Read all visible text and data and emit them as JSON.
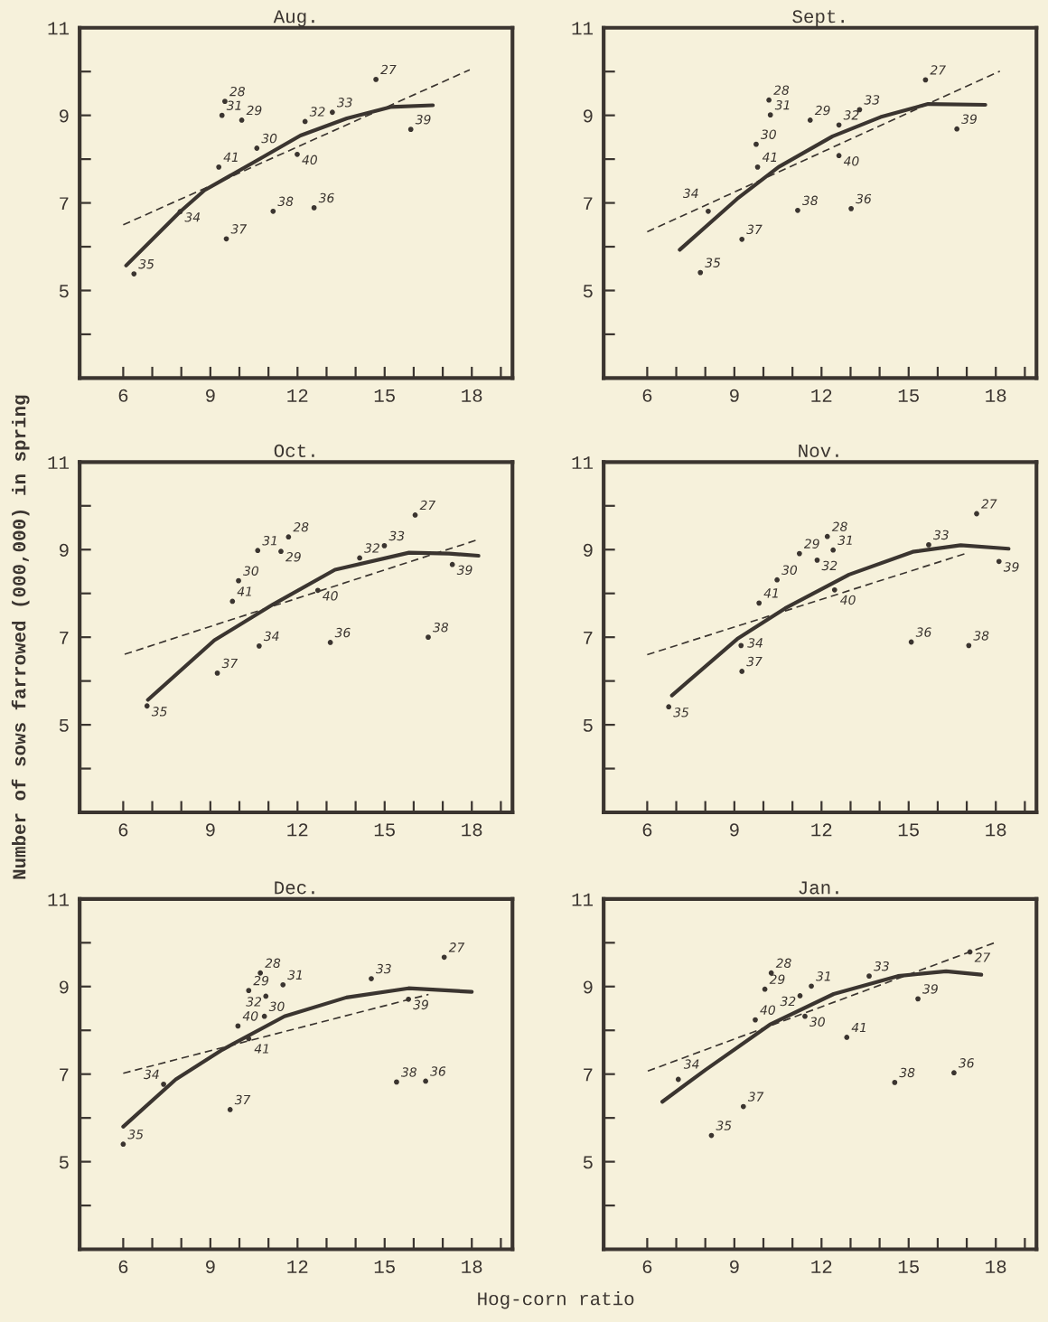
{
  "chart_data": [
    {
      "type": "scatter",
      "title": "Aug.",
      "xlim": [
        4.5,
        19.4
      ],
      "ylim": [
        3,
        11
      ],
      "xticks": [
        6,
        {
          "value": 7,
          "label": null
        },
        {
          "value": 8,
          "label": null
        },
        9,
        {
          "value": 10,
          "label": null
        },
        {
          "value": 11,
          "label": null
        },
        12,
        {
          "value": 13,
          "label": null
        },
        {
          "value": 14,
          "label": null
        },
        15,
        {
          "value": 16,
          "label": null
        },
        {
          "value": 17,
          "label": null
        },
        18,
        {
          "value": 19,
          "label": null
        }
      ],
      "yticks": [
        {
          "value": 4,
          "label": null
        },
        5,
        {
          "value": 6,
          "label": null
        },
        7,
        {
          "value": 8,
          "label": null
        },
        9,
        {
          "value": 10,
          "label": null
        },
        11
      ],
      "series": [
        {
          "marker": "circle",
          "color": "#3b3530",
          "x": [
            6.37,
            7.96,
            9.55,
            9.4,
            9.5,
            10.08,
            9.29,
            10.6,
            12.26,
            13.2,
            11.99,
            11.16,
            12.57,
            14.7,
            15.9
          ],
          "values": [
            5.38,
            6.8,
            6.18,
            9.0,
            9.32,
            8.89,
            7.82,
            8.25,
            8.86,
            9.07,
            8.11,
            6.81,
            6.89,
            9.82,
            8.68
          ]
        },
        {
          "type": "line",
          "marker": "none",
          "line_style": "solid",
          "color": "#3b3530",
          "x": [
            6.1,
            7.96,
            8.8,
            10.5,
            12.1,
            13.7,
            15.2,
            16.66
          ],
          "values": [
            5.57,
            6.8,
            7.29,
            7.93,
            8.54,
            8.93,
            9.19,
            9.23
          ]
        },
        {
          "type": "line",
          "marker": "none",
          "line_style": "dashed",
          "color": "#3b3530",
          "x": [
            6.0,
            17.93
          ],
          "values": [
            6.5,
            10.04
          ]
        }
      ],
      "annotations": [
        {
          "text": "35",
          "x": 6.37,
          "y": 5.38
        },
        {
          "text": "34",
          "x": 7.96,
          "y": 6.8
        },
        {
          "text": "37",
          "x": 9.55,
          "y": 6.18
        },
        {
          "text": "31",
          "x": 9.4,
          "y": 9.0
        },
        {
          "text": "28",
          "x": 9.5,
          "y": 9.32
        },
        {
          "text": "29",
          "x": 10.08,
          "y": 8.89
        },
        {
          "text": "41",
          "x": 9.29,
          "y": 7.82
        },
        {
          "text": "30",
          "x": 10.6,
          "y": 8.25
        },
        {
          "text": "32",
          "x": 12.26,
          "y": 8.86
        },
        {
          "text": "33",
          "x": 13.2,
          "y": 9.07
        },
        {
          "text": "40",
          "x": 11.99,
          "y": 8.11
        },
        {
          "text": "38",
          "x": 11.16,
          "y": 6.81
        },
        {
          "text": "36",
          "x": 12.57,
          "y": 6.89
        },
        {
          "text": "27",
          "x": 14.7,
          "y": 9.82
        },
        {
          "text": "39",
          "x": 15.9,
          "y": 8.68
        }
      ]
    },
    {
      "type": "scatter",
      "title": "Sept.",
      "xlim": [
        4.5,
        19.4
      ],
      "ylim": [
        3,
        11
      ],
      "xticks": [
        6,
        {
          "value": 7,
          "label": null
        },
        {
          "value": 8,
          "label": null
        },
        9,
        {
          "value": 10,
          "label": null
        },
        {
          "value": 11,
          "label": null
        },
        12,
        {
          "value": 13,
          "label": null
        },
        {
          "value": 14,
          "label": null
        },
        15,
        {
          "value": 16,
          "label": null
        },
        {
          "value": 17,
          "label": null
        },
        18,
        {
          "value": 19,
          "label": null
        }
      ],
      "yticks": [
        {
          "value": 4,
          "label": null
        },
        5,
        {
          "value": 6,
          "label": null
        },
        7,
        {
          "value": 8,
          "label": null
        },
        9,
        {
          "value": 10,
          "label": null
        },
        11
      ],
      "series": [
        {
          "marker": "circle",
          "color": "#3b3530",
          "x": [
            10.19,
            10.24,
            9.75,
            9.8,
            8.1,
            9.26,
            7.83,
            11.61,
            12.6,
            13.31,
            12.6,
            11.18,
            13.02,
            15.58,
            16.66
          ],
          "values": [
            9.35,
            9.01,
            8.34,
            7.82,
            6.81,
            6.17,
            5.41,
            8.89,
            8.78,
            9.13,
            8.08,
            6.83,
            6.87,
            9.81,
            8.69
          ]
        },
        {
          "type": "line",
          "marker": "none",
          "line_style": "solid",
          "color": "#3b3530",
          "x": [
            7.12,
            9.09,
            10.52,
            12.38,
            14.03,
            15.67,
            17.64
          ],
          "values": [
            5.93,
            7.09,
            7.82,
            8.52,
            8.96,
            9.26,
            9.24
          ]
        },
        {
          "type": "line",
          "marker": "none",
          "line_style": "dashed",
          "color": "#3b3530",
          "x": [
            6.0,
            18.14
          ],
          "values": [
            6.34,
            10.01
          ]
        }
      ],
      "annotations": [
        {
          "text": "28",
          "x": 10.19,
          "y": 9.35
        },
        {
          "text": "31",
          "x": 10.24,
          "y": 9.01
        },
        {
          "text": "30",
          "x": 9.75,
          "y": 8.34
        },
        {
          "text": "41",
          "x": 9.8,
          "y": 7.82
        },
        {
          "text": "34",
          "x": 8.1,
          "y": 6.81
        },
        {
          "text": "37",
          "x": 9.26,
          "y": 6.17
        },
        {
          "text": "35",
          "x": 7.83,
          "y": 5.41
        },
        {
          "text": "29",
          "x": 11.61,
          "y": 8.89
        },
        {
          "text": "32",
          "x": 12.6,
          "y": 8.78
        },
        {
          "text": "33",
          "x": 13.31,
          "y": 9.13
        },
        {
          "text": "40",
          "x": 12.6,
          "y": 8.08
        },
        {
          "text": "38",
          "x": 11.18,
          "y": 6.83
        },
        {
          "text": "36",
          "x": 13.02,
          "y": 6.87
        },
        {
          "text": "27",
          "x": 15.58,
          "y": 9.81
        },
        {
          "text": "39",
          "x": 16.66,
          "y": 8.69
        }
      ]
    },
    {
      "type": "scatter",
      "title": "Oct.",
      "ylabel": "Number of sows farrowed (000,000) in spring",
      "xlim": [
        4.5,
        19.4
      ],
      "ylim": [
        3,
        11
      ],
      "xticks": [
        6,
        {
          "value": 7,
          "label": null
        },
        {
          "value": 8,
          "label": null
        },
        9,
        {
          "value": 10,
          "label": null
        },
        {
          "value": 11,
          "label": null
        },
        12,
        {
          "value": 13,
          "label": null
        },
        {
          "value": 14,
          "label": null
        },
        15,
        {
          "value": 16,
          "label": null
        },
        {
          "value": 17,
          "label": null
        },
        18,
        {
          "value": 19,
          "label": null
        }
      ],
      "yticks": [
        {
          "value": 4,
          "label": null
        },
        5,
        {
          "value": 6,
          "label": null
        },
        7,
        {
          "value": 8,
          "label": null
        },
        9,
        {
          "value": 10,
          "label": null
        },
        11
      ],
      "series": [
        {
          "marker": "circle",
          "color": "#3b3530",
          "x": [
            6.82,
            9.24,
            10.68,
            9.76,
            9.97,
            10.63,
            11.69,
            11.43,
            14.14,
            14.99,
            16.05,
            17.33,
            12.7,
            13.13,
            16.5
          ],
          "values": [
            5.43,
            6.18,
            6.8,
            7.82,
            8.29,
            8.98,
            9.29,
            8.96,
            8.81,
            9.09,
            9.79,
            8.66,
            8.07,
            6.88,
            7.0
          ]
        },
        {
          "type": "line",
          "marker": "none",
          "line_style": "solid",
          "color": "#3b3530",
          "x": [
            6.85,
            9.14,
            11.16,
            13.29,
            15.84,
            17.22,
            18.23
          ],
          "values": [
            5.57,
            6.93,
            7.75,
            8.54,
            8.93,
            8.91,
            8.86
          ]
        },
        {
          "type": "line",
          "marker": "none",
          "line_style": "dashed",
          "color": "#3b3530",
          "x": [
            6.05,
            18.13
          ],
          "values": [
            6.61,
            9.21
          ]
        }
      ],
      "annotations": [
        {
          "text": "35",
          "x": 6.82,
          "y": 5.43
        },
        {
          "text": "37",
          "x": 9.24,
          "y": 6.18
        },
        {
          "text": "34",
          "x": 10.68,
          "y": 6.8
        },
        {
          "text": "41",
          "x": 9.76,
          "y": 7.82
        },
        {
          "text": "30",
          "x": 9.97,
          "y": 8.29
        },
        {
          "text": "31",
          "x": 10.63,
          "y": 8.98
        },
        {
          "text": "28",
          "x": 11.69,
          "y": 9.29
        },
        {
          "text": "29",
          "x": 11.43,
          "y": 8.96
        },
        {
          "text": "32",
          "x": 14.14,
          "y": 8.81
        },
        {
          "text": "33",
          "x": 14.99,
          "y": 9.09
        },
        {
          "text": "27",
          "x": 16.05,
          "y": 9.79
        },
        {
          "text": "39",
          "x": 17.33,
          "y": 8.66
        },
        {
          "text": "40",
          "x": 12.7,
          "y": 8.07
        },
        {
          "text": "36",
          "x": 13.13,
          "y": 6.88
        },
        {
          "text": "38",
          "x": 16.5,
          "y": 7.0
        }
      ]
    },
    {
      "type": "scatter",
      "title": "Nov.",
      "xlim": [
        4.5,
        19.4
      ],
      "ylim": [
        3,
        11
      ],
      "xticks": [
        6,
        {
          "value": 7,
          "label": null
        },
        {
          "value": 8,
          "label": null
        },
        9,
        {
          "value": 10,
          "label": null
        },
        {
          "value": 11,
          "label": null
        },
        12,
        {
          "value": 13,
          "label": null
        },
        {
          "value": 14,
          "label": null
        },
        15,
        {
          "value": 16,
          "label": null
        },
        {
          "value": 17,
          "label": null
        },
        18,
        {
          "value": 19,
          "label": null
        }
      ],
      "yticks": [
        {
          "value": 4,
          "label": null
        },
        5,
        {
          "value": 6,
          "label": null
        },
        7,
        {
          "value": 8,
          "label": null
        },
        9,
        {
          "value": 10,
          "label": null
        },
        11
      ],
      "series": [
        {
          "marker": "circle",
          "color": "#3b3530",
          "x": [
            6.74,
            9.26,
            9.23,
            9.85,
            10.47,
            11.24,
            12.2,
            12.4,
            11.85,
            12.45,
            15.69,
            17.34,
            18.11,
            15.09,
            17.07
          ],
          "values": [
            5.41,
            6.22,
            6.81,
            7.78,
            8.31,
            8.91,
            9.3,
            8.99,
            8.76,
            8.08,
            9.11,
            9.82,
            8.73,
            6.89,
            6.81
          ]
        },
        {
          "type": "line",
          "marker": "none",
          "line_style": "solid",
          "color": "#3b3530",
          "x": [
            6.85,
            9.1,
            10.75,
            12.95,
            15.14,
            16.79,
            18.44
          ],
          "values": [
            5.67,
            6.96,
            7.66,
            8.43,
            8.95,
            9.1,
            9.02
          ]
        },
        {
          "type": "line",
          "marker": "none",
          "line_style": "dashed",
          "color": "#3b3530",
          "x": [
            6.0,
            16.96
          ],
          "values": [
            6.6,
            8.91
          ]
        }
      ],
      "annotations": [
        {
          "text": "35",
          "x": 6.74,
          "y": 5.41
        },
        {
          "text": "37",
          "x": 9.26,
          "y": 6.22
        },
        {
          "text": "34",
          "x": 9.23,
          "y": 6.81
        },
        {
          "text": "41",
          "x": 9.85,
          "y": 7.78
        },
        {
          "text": "30",
          "x": 10.47,
          "y": 8.31
        },
        {
          "text": "29",
          "x": 11.24,
          "y": 8.91
        },
        {
          "text": "28",
          "x": 12.2,
          "y": 9.3
        },
        {
          "text": "31",
          "x": 12.4,
          "y": 8.99
        },
        {
          "text": "32",
          "x": 11.85,
          "y": 8.76
        },
        {
          "text": "40",
          "x": 12.45,
          "y": 8.08
        },
        {
          "text": "33",
          "x": 15.69,
          "y": 9.11
        },
        {
          "text": "27",
          "x": 17.34,
          "y": 9.82
        },
        {
          "text": "39",
          "x": 18.11,
          "y": 8.73
        },
        {
          "text": "36",
          "x": 15.09,
          "y": 6.89
        },
        {
          "text": "38",
          "x": 17.07,
          "y": 6.81
        }
      ]
    },
    {
      "type": "scatter",
      "title": "Dec.",
      "xlabel": "Hog-corn ratio",
      "xlim": [
        4.5,
        19.4
      ],
      "ylim": [
        3,
        11
      ],
      "xticks": [
        6,
        {
          "value": 7,
          "label": null
        },
        {
          "value": 8,
          "label": null
        },
        9,
        {
          "value": 10,
          "label": null
        },
        {
          "value": 11,
          "label": null
        },
        12,
        {
          "value": 13,
          "label": null
        },
        {
          "value": 14,
          "label": null
        },
        15,
        {
          "value": 16,
          "label": null
        },
        {
          "value": 17,
          "label": null
        },
        18,
        {
          "value": 19,
          "label": null
        }
      ],
      "yticks": [
        {
          "value": 4,
          "label": null
        },
        5,
        {
          "value": 6,
          "label": null
        },
        7,
        {
          "value": 8,
          "label": null
        },
        9,
        {
          "value": 10,
          "label": null
        },
        11
      ],
      "series": [
        {
          "marker": "circle",
          "color": "#3b3530",
          "x": [
            6.0,
            7.39,
            9.68,
            9.95,
            10.32,
            10.32,
            10.86,
            10.72,
            10.91,
            11.5,
            14.54,
            17.05,
            15.82,
            15.41,
            16.41
          ],
          "values": [
            5.4,
            6.77,
            6.19,
            8.1,
            7.81,
            8.91,
            8.32,
            9.31,
            8.78,
            9.04,
            9.18,
            9.67,
            8.71,
            6.82,
            6.84
          ]
        },
        {
          "type": "line",
          "marker": "none",
          "line_style": "solid",
          "color": "#3b3530",
          "x": [
            6.0,
            7.81,
            9.42,
            11.55,
            13.68,
            15.82,
            18.0
          ],
          "values": [
            5.8,
            6.88,
            7.56,
            8.32,
            8.75,
            8.96,
            8.88
          ]
        },
        {
          "type": "line",
          "marker": "none",
          "line_style": "dashed",
          "color": "#3b3530",
          "x": [
            6.0,
            16.51
          ],
          "values": [
            7.02,
            8.82
          ]
        }
      ],
      "annotations": [
        {
          "text": "35",
          "x": 6.0,
          "y": 5.4
        },
        {
          "text": "34",
          "x": 7.39,
          "y": 6.77
        },
        {
          "text": "37",
          "x": 9.68,
          "y": 6.19
        },
        {
          "text": "40",
          "x": 9.95,
          "y": 8.1
        },
        {
          "text": "41",
          "x": 10.32,
          "y": 7.81
        },
        {
          "text": "29",
          "x": 10.32,
          "y": 8.91
        },
        {
          "text": "30",
          "x": 10.86,
          "y": 8.32
        },
        {
          "text": "28",
          "x": 10.72,
          "y": 9.31
        },
        {
          "text": "32",
          "x": 10.91,
          "y": 8.78
        },
        {
          "text": "31",
          "x": 11.5,
          "y": 9.04
        },
        {
          "text": "33",
          "x": 14.54,
          "y": 9.18
        },
        {
          "text": "27",
          "x": 17.05,
          "y": 9.67
        },
        {
          "text": "39",
          "x": 15.82,
          "y": 8.71
        },
        {
          "text": "38",
          "x": 15.41,
          "y": 6.82
        },
        {
          "text": "36",
          "x": 16.41,
          "y": 6.84
        }
      ]
    },
    {
      "type": "scatter",
      "title": "Jan.",
      "xlim": [
        4.5,
        19.4
      ],
      "ylim": [
        3,
        11
      ],
      "xticks": [
        6,
        {
          "value": 7,
          "label": null
        },
        {
          "value": 8,
          "label": null
        },
        9,
        {
          "value": 10,
          "label": null
        },
        {
          "value": 11,
          "label": null
        },
        12,
        {
          "value": 13,
          "label": null
        },
        {
          "value": 14,
          "label": null
        },
        15,
        {
          "value": 16,
          "label": null
        },
        {
          "value": 17,
          "label": null
        },
        18,
        {
          "value": 19,
          "label": null
        }
      ],
      "yticks": [
        {
          "value": 4,
          "label": null
        },
        5,
        {
          "value": 6,
          "label": null
        },
        7,
        {
          "value": 8,
          "label": null
        },
        9,
        {
          "value": 10,
          "label": null
        },
        11
      ],
      "series": [
        {
          "marker": "circle",
          "color": "#3b3530",
          "x": [
            7.07,
            8.21,
            9.31,
            9.72,
            10.05,
            10.27,
            11.26,
            11.65,
            11.43,
            12.87,
            13.64,
            15.32,
            17.11,
            14.52,
            16.56
          ],
          "values": [
            6.88,
            5.6,
            6.26,
            8.24,
            8.94,
            9.31,
            8.79,
            9.01,
            8.32,
            7.84,
            9.24,
            8.72,
            9.79,
            6.81,
            7.03
          ]
        },
        {
          "type": "line",
          "marker": "none",
          "line_style": "solid",
          "color": "#3b3530",
          "x": [
            6.52,
            8.01,
            10.22,
            12.42,
            14.63,
            16.29,
            17.5
          ],
          "values": [
            6.37,
            7.1,
            8.13,
            8.83,
            9.24,
            9.35,
            9.27
          ]
        },
        {
          "type": "line",
          "marker": "none",
          "line_style": "dashed",
          "color": "#3b3530",
          "x": [
            6.02,
            18.0
          ],
          "values": [
            7.07,
            10.01
          ]
        }
      ],
      "annotations": [
        {
          "text": "34",
          "x": 7.07,
          "y": 6.88
        },
        {
          "text": "35",
          "x": 8.21,
          "y": 5.6
        },
        {
          "text": "37",
          "x": 9.31,
          "y": 6.26
        },
        {
          "text": "40",
          "x": 9.72,
          "y": 8.24
        },
        {
          "text": "29",
          "x": 10.05,
          "y": 8.94
        },
        {
          "text": "28",
          "x": 10.27,
          "y": 9.31
        },
        {
          "text": "32",
          "x": 11.26,
          "y": 8.79
        },
        {
          "text": "31",
          "x": 11.65,
          "y": 9.01
        },
        {
          "text": "30",
          "x": 11.43,
          "y": 8.32
        },
        {
          "text": "41",
          "x": 12.87,
          "y": 7.84
        },
        {
          "text": "33",
          "x": 13.64,
          "y": 9.24
        },
        {
          "text": "39",
          "x": 15.32,
          "y": 8.72
        },
        {
          "text": "27",
          "x": 17.11,
          "y": 9.79
        },
        {
          "text": "38",
          "x": 14.52,
          "y": 6.81
        },
        {
          "text": "36",
          "x": 16.56,
          "y": 7.03
        }
      ]
    }
  ]
}
